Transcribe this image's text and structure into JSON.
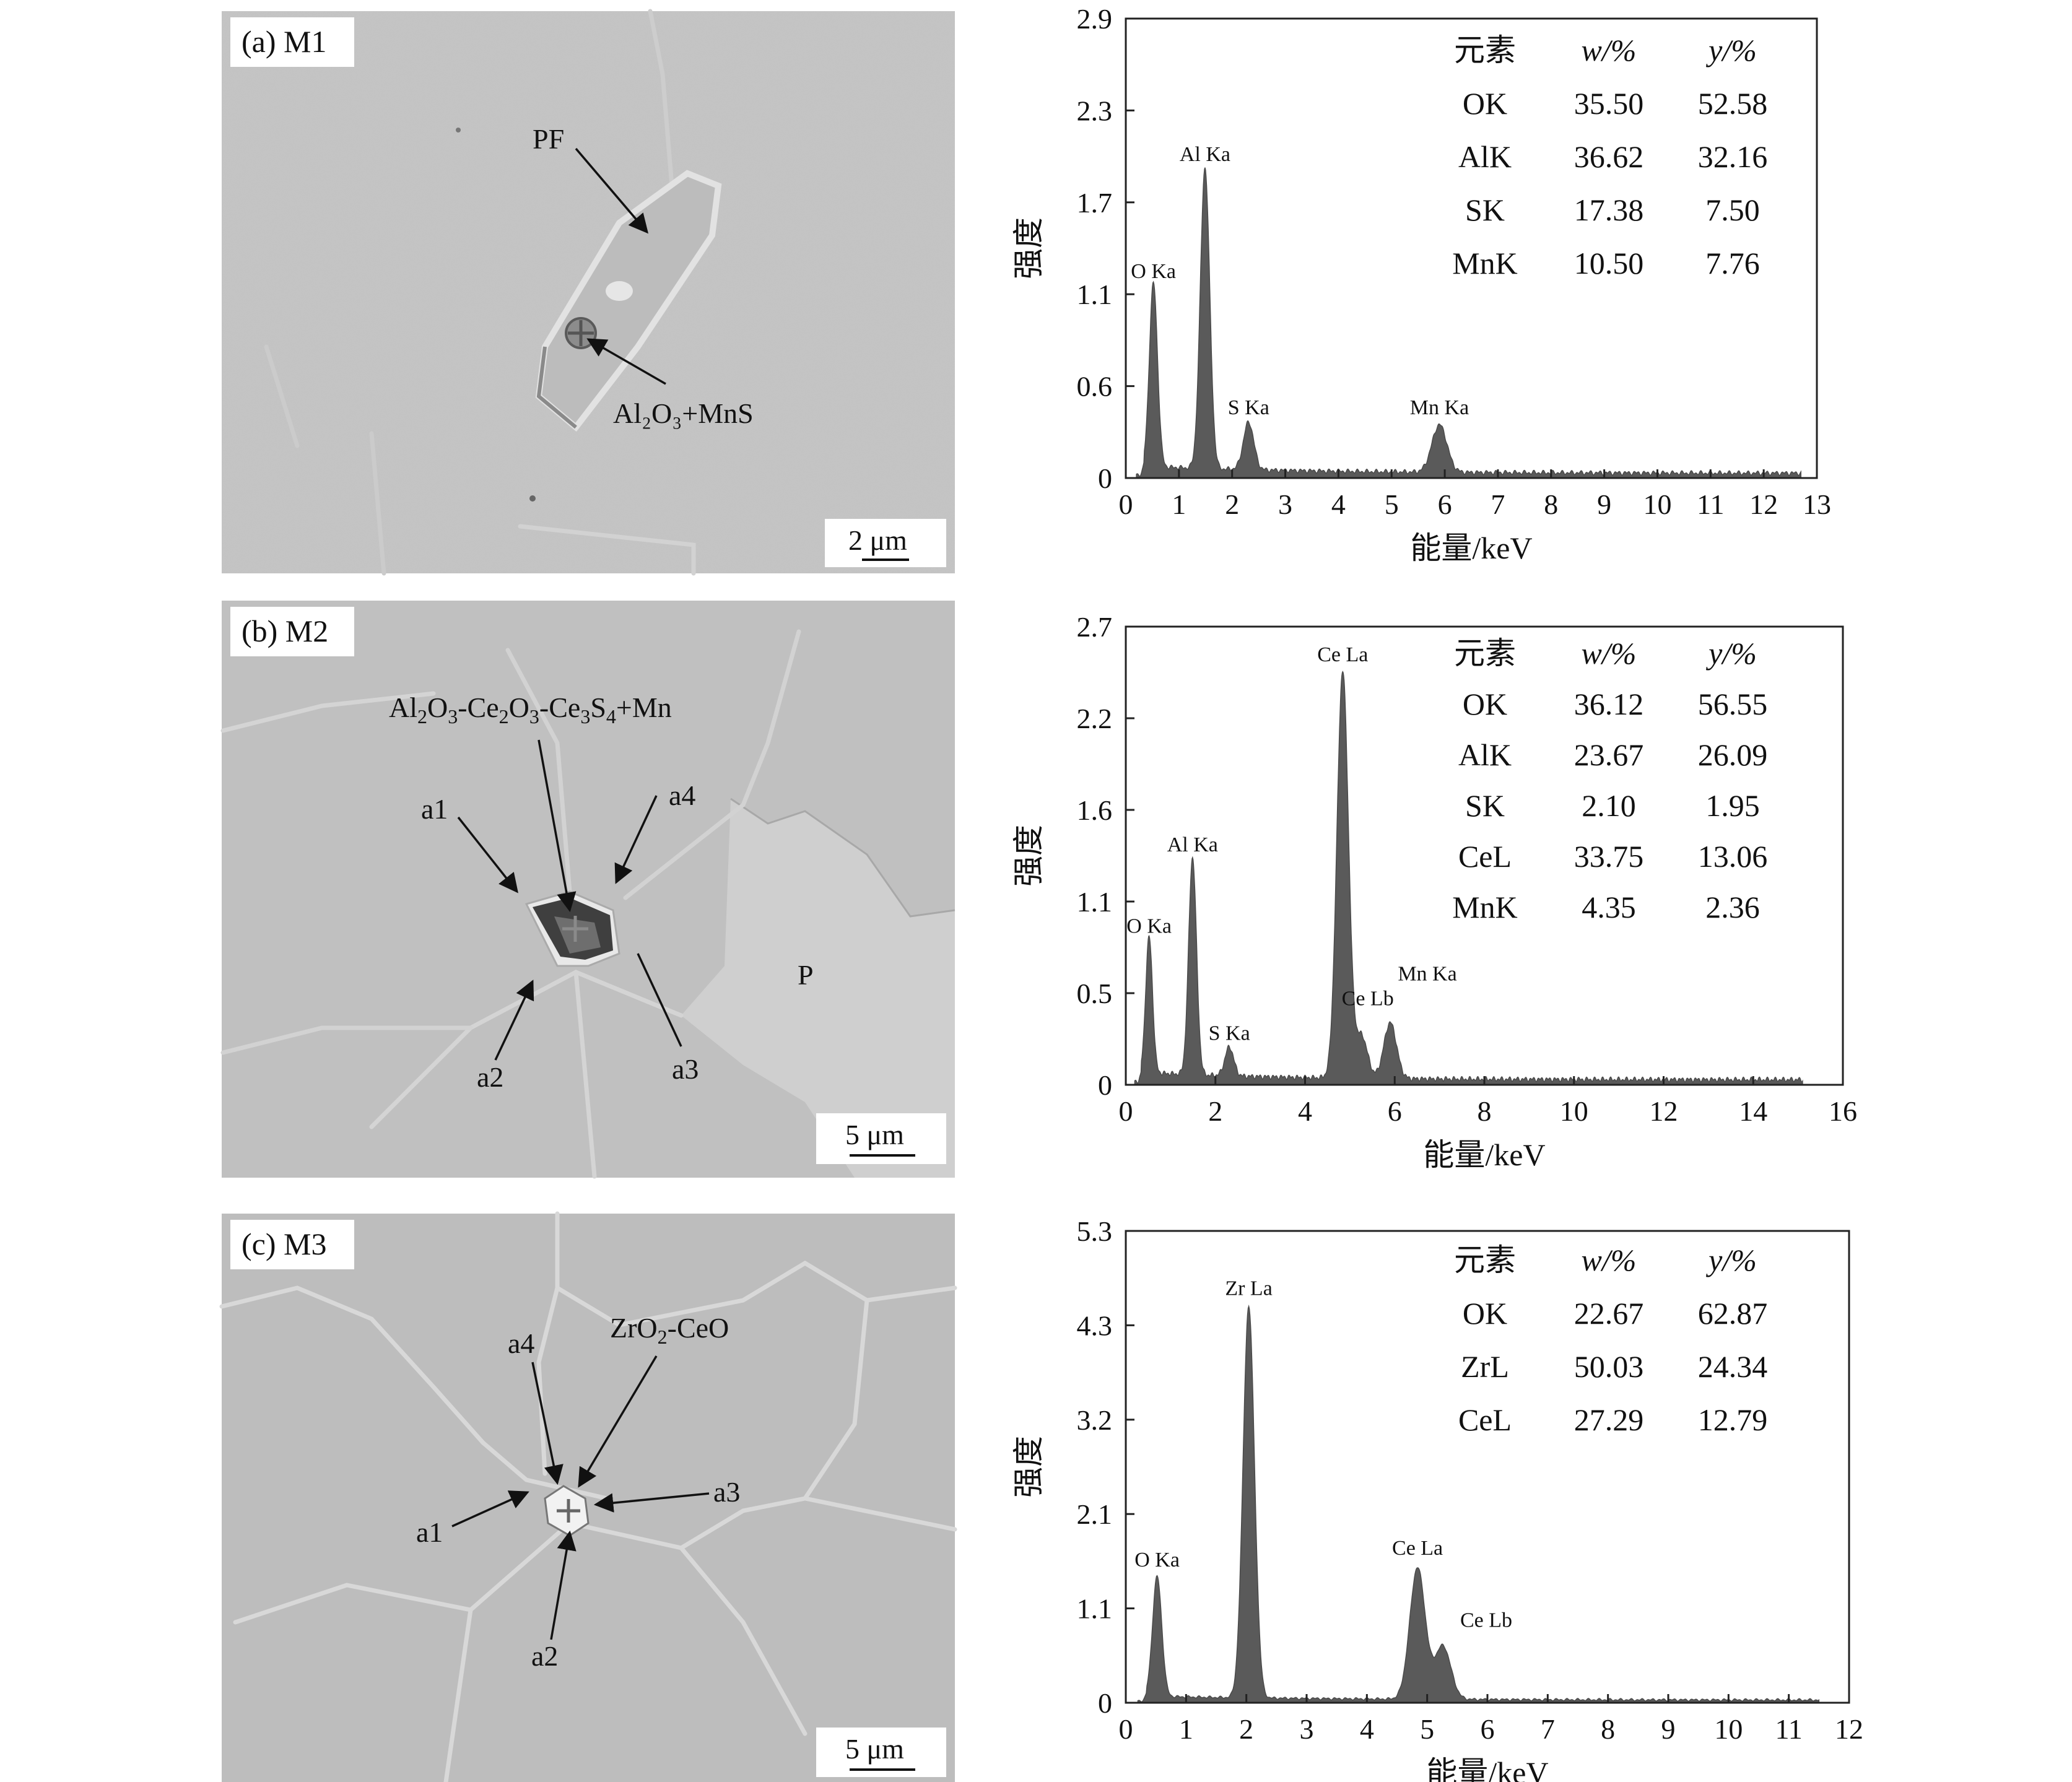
{
  "panels": [
    {
      "id": "a",
      "label": "(a) M1",
      "scale_bar": "2 μm",
      "annotations": [
        "PF",
        "Al₂O₃+MnS"
      ],
      "spectrum": {
        "ylabel": "强度",
        "xlabel": "能量/keV",
        "y_ticks": [
          "0",
          "0.6",
          "1.1",
          "1.7",
          "2.3",
          "2.9"
        ],
        "x_ticks": [
          "0",
          "1",
          "2",
          "3",
          "4",
          "5",
          "6",
          "7",
          "8",
          "9",
          "10",
          "11",
          "12",
          "13"
        ],
        "xlim": [
          0,
          13
        ],
        "ylim": [
          0,
          2.9
        ],
        "peaks": [
          {
            "label": "O Ka",
            "x": 0.52,
            "y": 1.16
          },
          {
            "label": "Al Ka",
            "x": 1.49,
            "y": 1.9
          },
          {
            "label": "S Ka",
            "x": 2.31,
            "y": 0.3
          },
          {
            "label": "Mn Ka",
            "x": 5.9,
            "y": 0.3
          }
        ],
        "table": {
          "headers": [
            "元素",
            "w/%",
            "y/%"
          ],
          "rows": [
            [
              "OK",
              "35.50",
              "52.58"
            ],
            [
              "AlK",
              "36.62",
              "32.16"
            ],
            [
              "SK",
              "17.38",
              "7.50"
            ],
            [
              "MnK",
              "10.50",
              "7.76"
            ]
          ]
        }
      }
    },
    {
      "id": "b",
      "label": "(b) M2",
      "scale_bar": "5 μm",
      "annotations": [
        "Al₂O₃-Ce₂O₃-Ce₃S₄+Mn",
        "a1",
        "a2",
        "a3",
        "a4",
        "P"
      ],
      "spectrum": {
        "ylabel": "强度",
        "xlabel": "能量/keV",
        "y_ticks": [
          "0",
          "0.5",
          "1.1",
          "1.6",
          "2.2",
          "2.7"
        ],
        "x_ticks": [
          "0",
          "2",
          "4",
          "6",
          "8",
          "10",
          "12",
          "14",
          "16"
        ],
        "xlim": [
          0,
          16
        ],
        "ylim": [
          0,
          2.7
        ],
        "peaks": [
          {
            "label": "O Ka",
            "x": 0.52,
            "y": 0.8
          },
          {
            "label": "Al Ka",
            "x": 1.49,
            "y": 1.28
          },
          {
            "label": "S Ka",
            "x": 2.31,
            "y": 0.17
          },
          {
            "label": "Ce La",
            "x": 4.84,
            "y": 2.4
          },
          {
            "label": "Ce Lb",
            "x": 5.26,
            "y": 0.25
          },
          {
            "label": "Mn Ka",
            "x": 5.9,
            "y": 0.33
          }
        ],
        "table": {
          "headers": [
            "元素",
            "w/%",
            "y/%"
          ],
          "rows": [
            [
              "OK",
              "36.12",
              "56.55"
            ],
            [
              "AlK",
              "23.67",
              "26.09"
            ],
            [
              "SK",
              "2.10",
              "1.95"
            ],
            [
              "CeL",
              "33.75",
              "13.06"
            ],
            [
              "MnK",
              "4.35",
              "2.36"
            ]
          ]
        }
      }
    },
    {
      "id": "c",
      "label": "(c) M3",
      "scale_bar": "5 μm",
      "annotations": [
        "ZrO₂-CeO",
        "a1",
        "a2",
        "a3",
        "a4"
      ],
      "spectrum": {
        "ylabel": "强度",
        "xlabel": "能量/keV",
        "y_ticks": [
          "0",
          "1.1",
          "2.1",
          "3.2",
          "4.3",
          "5.3"
        ],
        "x_ticks": [
          "0",
          "1",
          "2",
          "3",
          "4",
          "5",
          "6",
          "7",
          "8",
          "9",
          "10",
          "11",
          "12"
        ],
        "xlim": [
          0,
          12
        ],
        "ylim": [
          0,
          5.3
        ],
        "peaks": [
          {
            "label": "O Ka",
            "x": 0.52,
            "y": 1.35
          },
          {
            "label": "Zr La",
            "x": 2.04,
            "y": 4.4
          },
          {
            "label": "Ce La",
            "x": 4.84,
            "y": 1.48
          },
          {
            "label": "Ce Lb",
            "x": 5.26,
            "y": 0.6
          }
        ],
        "table": {
          "headers": [
            "元素",
            "w/%",
            "y/%"
          ],
          "rows": [
            [
              "OK",
              "22.67",
              "62.87"
            ],
            [
              "ZrL",
              "50.03",
              "24.34"
            ],
            [
              "CeL",
              "27.29",
              "12.79"
            ]
          ]
        }
      }
    }
  ],
  "chart_data": [
    {
      "type": "line",
      "xlabel": "能量/keV",
      "ylabel": "强度",
      "xlim": [
        0,
        13
      ],
      "ylim": [
        0,
        2.9
      ],
      "peaks": [
        [
          "O Ka",
          0.52,
          1.16
        ],
        [
          "Al Ka",
          1.49,
          1.9
        ],
        [
          "S Ka",
          2.31,
          0.3
        ],
        [
          "Mn Ka",
          5.9,
          0.3
        ]
      ]
    },
    {
      "type": "line",
      "xlabel": "能量/keV",
      "ylabel": "强度",
      "xlim": [
        0,
        16
      ],
      "ylim": [
        0,
        2.7
      ],
      "peaks": [
        [
          "O Ka",
          0.52,
          0.8
        ],
        [
          "Al Ka",
          1.49,
          1.28
        ],
        [
          "S Ka",
          2.31,
          0.17
        ],
        [
          "Ce La",
          4.84,
          2.4
        ],
        [
          "Ce Lb",
          5.26,
          0.25
        ],
        [
          "Mn Ka",
          5.9,
          0.33
        ]
      ]
    },
    {
      "type": "line",
      "xlabel": "能量/keV",
      "ylabel": "强度",
      "xlim": [
        0,
        12
      ],
      "ylim": [
        0,
        5.3
      ],
      "peaks": [
        [
          "O Ka",
          0.52,
          1.35
        ],
        [
          "Zr La",
          2.04,
          4.4
        ],
        [
          "Ce La",
          4.84,
          1.48
        ],
        [
          "Ce Lb",
          5.26,
          0.6
        ]
      ]
    }
  ]
}
